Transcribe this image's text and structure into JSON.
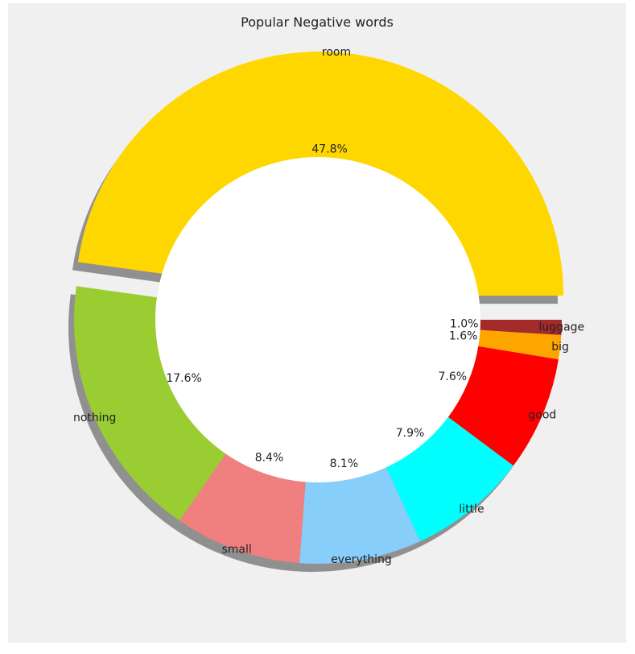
{
  "chart_data": {
    "type": "pie",
    "style": "donut",
    "title": "Popular Negative words",
    "categories": [
      "room",
      "nothing",
      "small",
      "everything",
      "little",
      "good",
      "big",
      "luggage"
    ],
    "values": [
      47.8,
      17.6,
      8.4,
      8.1,
      7.9,
      7.6,
      1.6,
      1.0
    ],
    "value_labels": [
      "47.8%",
      "17.6%",
      "8.4%",
      "8.1%",
      "7.9%",
      "7.6%",
      "1.6%",
      "1.0%"
    ],
    "colors": [
      "#ffd700",
      "#9acd32",
      "#f08080",
      "#87cefa",
      "#00ffff",
      "#ff0000",
      "#ffa500",
      "#a52a2a"
    ],
    "exploded": [
      "room"
    ],
    "shadow": true,
    "start_angle_deg": 0,
    "direction": "counterclockwise",
    "background_color": "#f0f0f0",
    "center_color": "#ffffff"
  }
}
